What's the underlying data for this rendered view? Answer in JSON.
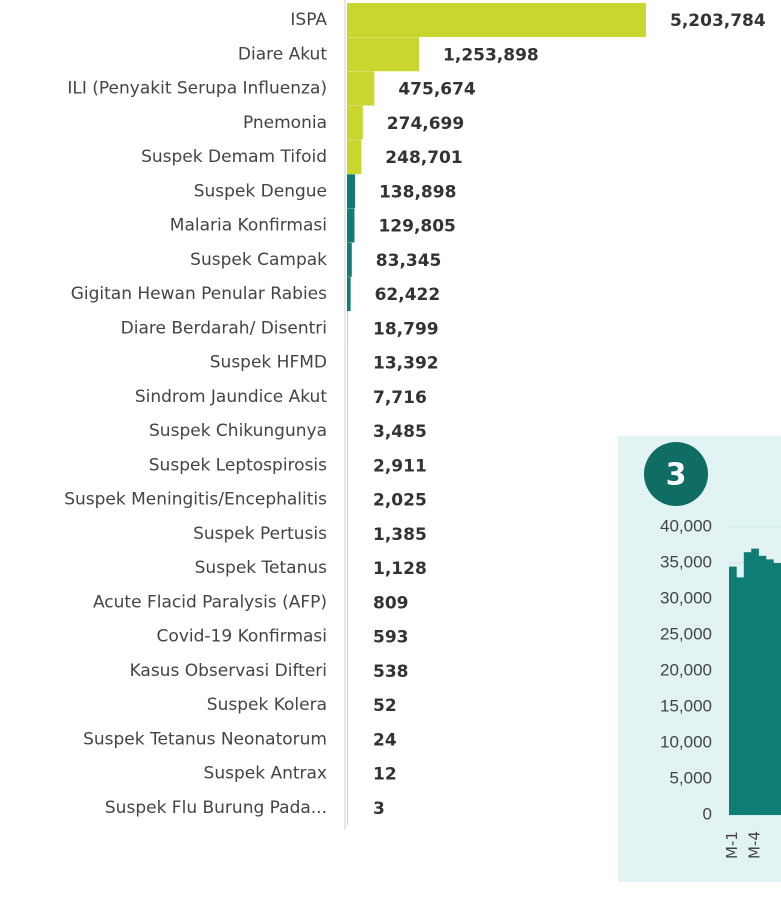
{
  "chart_data": [
    {
      "type": "hbar",
      "categories": [
        "ISPA",
        "Diare Akut",
        "ILI (Penyakit Serupa Influenza)",
        "Pnemonia",
        "Suspek Demam Tifoid",
        "Suspek Dengue",
        "Malaria Konfirmasi",
        "Suspek Campak",
        "Gigitan Hewan Penular Rabies",
        "Diare Berdarah/ Disentri",
        "Suspek HFMD",
        "Sindrom Jaundice Akut",
        "Suspek Chikungunya",
        "Suspek Leptospirosis",
        "Suspek Meningitis/Encephalitis",
        "Suspek Pertusis",
        "Suspek Tetanus",
        "Acute Flacid Paralysis (AFP)",
        "Covid-19 Konfirmasi",
        "Kasus Observasi Difteri",
        "Suspek Kolera",
        "Suspek Tetanus Neonatorum",
        "Suspek Antrax",
        "Suspek Flu Burung Pada..."
      ],
      "values": [
        5203784,
        1253898,
        475674,
        274699,
        248701,
        138898,
        129805,
        83345,
        62422,
        18799,
        13392,
        7716,
        3485,
        2911,
        2025,
        1385,
        1128,
        809,
        593,
        538,
        52,
        24,
        12,
        3
      ],
      "value_labels": [
        "5,203,784",
        "1,253,898",
        "475,674",
        "274,699",
        "248,701",
        "138,898",
        "129,805",
        "83,345",
        "62,422",
        "18,799",
        "13,392",
        "7,716",
        "3,485",
        "2,911",
        "2,025",
        "1,385",
        "1,128",
        "809",
        "593",
        "538",
        "52",
        "24",
        "12",
        "3"
      ],
      "colors": [
        "#c9d62f",
        "#c9d62f",
        "#c9d62f",
        "#c9d62f",
        "#c9d62f",
        "#0f7d73",
        "#0f7d73",
        "#0f7d73",
        "#0f7d73",
        "#c8d3d2",
        "#c8d3d2",
        "#c8d3d2",
        "#c8d3d2",
        "#c8d3d2",
        "#c8d3d2",
        "#c8d3d2",
        "#c8d3d2",
        "#c8d3d2",
        "#c8d3d2",
        "#c8d3d2",
        "#c8d3d2",
        "#c8d3d2",
        "#c8d3d2",
        "#c8d3d2"
      ]
    },
    {
      "type": "bar",
      "badge": "3",
      "categories": [
        "M-1",
        null,
        null,
        "M-4",
        null,
        null,
        null
      ],
      "values": [
        34500,
        33000,
        36500,
        37000,
        36000,
        35500,
        35000
      ],
      "color": "#0f7d73",
      "ylim": [
        0,
        40000
      ],
      "yticks": [
        0,
        {
          "value": 5000,
          "label": "5,000"
        },
        {
          "value": 10000,
          "label": "10,000"
        },
        {
          "value": 15000,
          "label": "15,000"
        },
        {
          "value": 20000,
          "label": "20,000"
        },
        {
          "value": 25000,
          "label": "25,000"
        },
        {
          "value": 30000,
          "label": "30,000"
        },
        {
          "value": 35000,
          "label": "35,000"
        },
        {
          "value": 40000,
          "label": "40,000"
        }
      ]
    }
  ]
}
